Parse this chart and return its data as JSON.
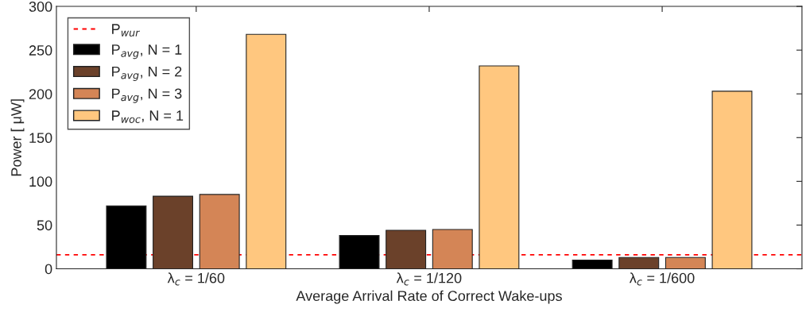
{
  "chart_data": {
    "type": "bar",
    "xlabel": "Average Arrival Rate of Correct Wake-ups",
    "ylabel": "Power [ μW]",
    "categories": [
      "λ$_{c}$ = 1/60",
      "λ$_{c}$ = 1/120",
      "λ$_{c}$ = 1/600"
    ],
    "series": [
      {
        "name": "P$_{avg}$, N = 1",
        "color": "#000000",
        "values": [
          72,
          38,
          10
        ]
      },
      {
        "name": "P$_{avg}$, N = 2",
        "color": "#6b412a",
        "values": [
          83,
          44,
          13
        ]
      },
      {
        "name": "P$_{avg}$, N = 3",
        "color": "#d48556",
        "values": [
          85,
          45,
          13
        ]
      },
      {
        "name": "P$_{woc}$, N = 1",
        "color": "#ffc77f",
        "values": [
          268,
          232,
          203
        ]
      }
    ],
    "ref_lines": [
      {
        "axis": "y",
        "value": 16,
        "label": "P$_{wur}$",
        "color": "#ff0000",
        "line_style": "dashed"
      }
    ],
    "ylim": [
      0,
      300
    ],
    "yticks": [
      0,
      50,
      100,
      150,
      200,
      250,
      300
    ],
    "grid": false,
    "legend": "top left"
  }
}
